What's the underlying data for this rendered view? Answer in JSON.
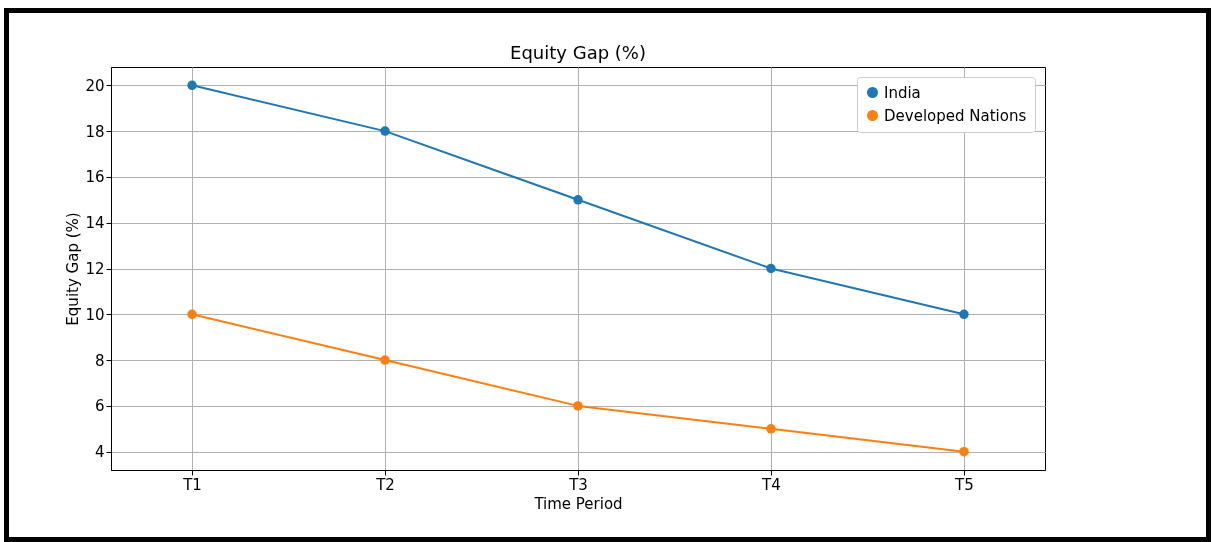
{
  "chart_data": {
    "type": "line",
    "title": "Equity Gap (%)",
    "xlabel": "Time Period",
    "ylabel": "Equity Gap (%)",
    "categories": [
      "T1",
      "T2",
      "T3",
      "T4",
      "T5"
    ],
    "series": [
      {
        "name": "India",
        "color": "#1f77b4",
        "values": [
          20,
          18,
          15,
          12,
          10
        ]
      },
      {
        "name": "Developed Nations",
        "color": "#ff7f0e",
        "values": [
          10,
          8,
          6,
          5,
          4
        ]
      }
    ],
    "ylim": [
      3.2,
      20.8
    ],
    "yticks": [
      4,
      6,
      8,
      10,
      12,
      14,
      16,
      18,
      20
    ],
    "grid": true,
    "legend": "top right",
    "marker": "circle",
    "line_style": "solid"
  }
}
